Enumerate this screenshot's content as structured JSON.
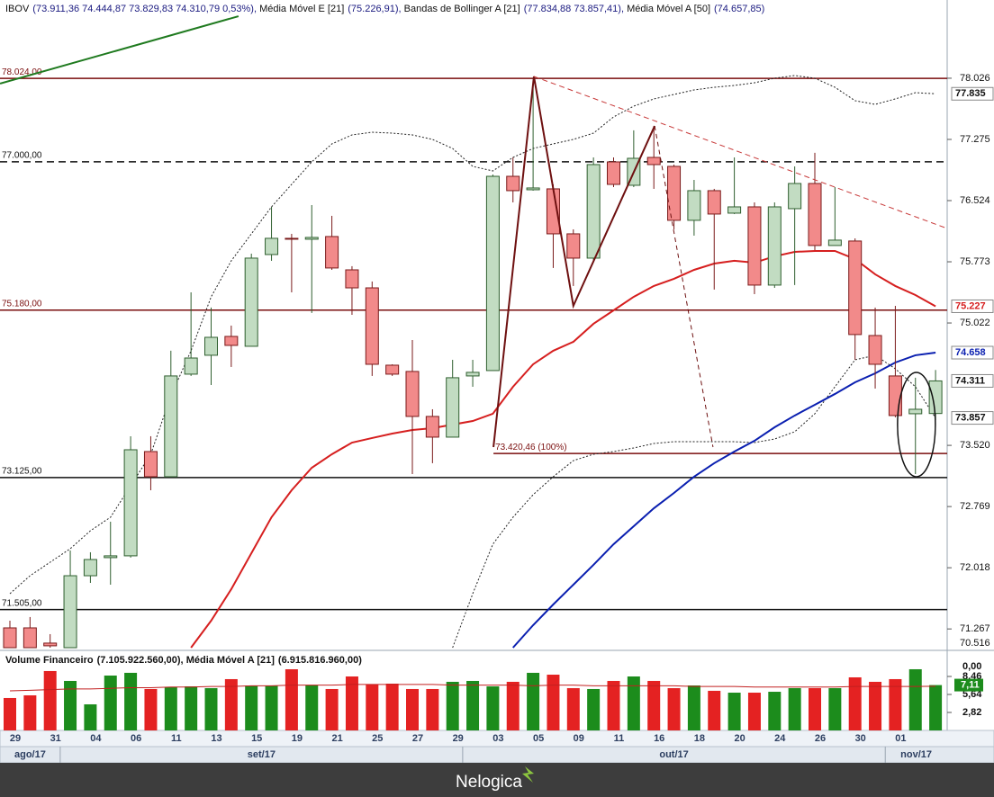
{
  "chart_data": {
    "type": "candlestick",
    "header": [
      {
        "name": "IBOV",
        "values": "(73.911,36  74.444,87  73.829,83  74.310,79  0,53%),"
      },
      {
        "name": "Média Móvel E [21]",
        "values": "(75.226,91),"
      },
      {
        "name": "Bandas de Bollinger A [21]",
        "values": "(77.834,88  73.857,41),"
      },
      {
        "name": "Média Móvel A [50]",
        "values": "(74.657,85)"
      }
    ],
    "categories": [
      "29",
      null,
      "31",
      null,
      "04",
      null,
      "06",
      null,
      "11",
      null,
      "13",
      null,
      "15",
      null,
      "19",
      null,
      "21",
      null,
      "25",
      null,
      "27",
      null,
      "29",
      null,
      "03",
      null,
      "05",
      null,
      "09",
      null,
      "11",
      null,
      "16",
      null,
      "18",
      null,
      "20",
      null,
      "24",
      null,
      "26",
      null,
      "30",
      null,
      "01",
      null,
      null
    ],
    "months": [
      {
        "name": "ago/17",
        "start": 0
      },
      {
        "name": "set/17",
        "start": 3
      },
      {
        "name": "out/17",
        "start": 23
      },
      {
        "name": "nov/17",
        "start": 44
      }
    ],
    "ylim": [
      71037,
      78986
    ],
    "yticks": [
      {
        "value": 78026,
        "label": "78.026"
      },
      {
        "value": 77275,
        "label": "77.275"
      },
      {
        "value": 76524,
        "label": "76.524"
      },
      {
        "value": 75773,
        "label": "75.773"
      },
      {
        "value": 75022,
        "label": "75.022"
      },
      {
        "value": 73520,
        "label": "73.520"
      },
      {
        "value": 72769,
        "label": "72.769"
      },
      {
        "value": 72018,
        "label": "72.018"
      },
      {
        "value": 71267,
        "label": "71.267"
      }
    ],
    "axis_floor_label": "70.516",
    "up_color": "#c2dcc2",
    "up_edge": "#2f5f2f",
    "down_color": "#f28a8a",
    "down_edge": "#7a1a1a",
    "open": [
      71280,
      71280,
      71093,
      71037,
      71920,
      72142,
      72164,
      73444,
      73135,
      74394,
      74626,
      74857,
      74736,
      75862,
      76061,
      76050,
      76083,
      75674,
      75453,
      74504,
      74427,
      73875,
      73621,
      74372,
      74438,
      76822,
      76657,
      76668,
      76116,
      75818,
      76999,
      76712,
      77054,
      76944,
      76282,
      76646,
      76370,
      76447,
      75487,
      76425,
      76734,
      75973,
      76028,
      74868,
      74372,
      73908,
      73911
    ],
    "high": [
      71368,
      71413,
      71203,
      72230,
      72208,
      72583,
      73632,
      73632,
      74681,
      75398,
      75211,
      74990,
      75873,
      76447,
      76116,
      76469,
      76337,
      75719,
      75531,
      74515,
      74813,
      73963,
      74570,
      74570,
      76844,
      77054,
      77993,
      76723,
      76171,
      77054,
      77054,
      77386,
      77441,
      76966,
      76778,
      76668,
      77054,
      76502,
      76502,
      76944,
      77110,
      76690,
      76061,
      75211,
      75232,
      74350,
      74445
    ],
    "low": [
      71037,
      71037,
      71037,
      71037,
      71832,
      71810,
      72142,
      72969,
      73135,
      74372,
      74261,
      74482,
      74736,
      75785,
      75398,
      75145,
      75674,
      75122,
      74372,
      74372,
      73168,
      73301,
      73621,
      74239,
      74438,
      76502,
      76646,
      75697,
      75476,
      75785,
      76690,
      76690,
      76668,
      76171,
      76094,
      75432,
      76359,
      75376,
      75453,
      75487,
      75917,
      75973,
      74570,
      74217,
      73864,
      73168,
      73830
    ],
    "close": [
      71037,
      71037,
      71060,
      71920,
      72119,
      72164,
      73466,
      73135,
      74372,
      74592,
      74846,
      74747,
      75818,
      76061,
      76050,
      76072,
      75697,
      75453,
      74515,
      74394,
      73875,
      73621,
      74350,
      74416,
      76822,
      76646,
      76679,
      76116,
      75818,
      76966,
      76723,
      77043,
      76966,
      76282,
      76646,
      76359,
      76447,
      75487,
      76447,
      76734,
      75973,
      76039,
      74880,
      74515,
      73886,
      73963,
      74311
    ],
    "lines": [
      {
        "color": "#d61f1f",
        "width": 2,
        "dash": "",
        "values": [
          null,
          null,
          null,
          null,
          null,
          null,
          null,
          null,
          null,
          71037,
          71368,
          71755,
          72196,
          72638,
          72969,
          73245,
          73411,
          73554,
          73610,
          73665,
          73709,
          73731,
          73775,
          73819,
          73908,
          74239,
          74515,
          74681,
          74791,
          75012,
          75177,
          75343,
          75476,
          75564,
          75674,
          75751,
          75785,
          75762,
          75840,
          75895,
          75906,
          75906,
          75807,
          75619,
          75476,
          75365,
          75227
        ]
      },
      {
        "color": "#0a1fb0",
        "width": 2,
        "dash": "",
        "values": [
          null,
          null,
          null,
          null,
          null,
          null,
          null,
          null,
          null,
          null,
          null,
          null,
          null,
          null,
          null,
          null,
          null,
          null,
          null,
          null,
          null,
          null,
          null,
          null,
          null,
          71037,
          71313,
          71567,
          71810,
          72053,
          72307,
          72528,
          72748,
          72936,
          73135,
          73301,
          73444,
          73576,
          73742,
          73886,
          74018,
          74151,
          74294,
          74404,
          74537,
          74626,
          74658
        ]
      },
      {
        "color": "#222222",
        "width": 1,
        "dash": "2 2",
        "values": [
          71700,
          71920,
          72086,
          72252,
          72472,
          72638,
          73024,
          73411,
          74128,
          74681,
          75343,
          75785,
          76116,
          76447,
          76723,
          76999,
          77220,
          77330,
          77363,
          77352,
          77330,
          77275,
          77164,
          76944,
          76888,
          77054,
          77164,
          77220,
          77275,
          77352,
          77551,
          77683,
          77772,
          77827,
          77882,
          77915,
          77937,
          77970,
          78026,
          78059,
          78026,
          77915,
          77750,
          77705,
          77772,
          77849,
          77835
        ]
      },
      {
        "color": "#222222",
        "width": 1,
        "dash": "2 2",
        "values": [
          null,
          null,
          null,
          null,
          null,
          null,
          null,
          null,
          null,
          null,
          null,
          null,
          null,
          null,
          null,
          null,
          null,
          null,
          null,
          null,
          null,
          null,
          71037,
          71700,
          72307,
          72638,
          72914,
          73135,
          73333,
          73411,
          73444,
          73488,
          73543,
          73565,
          73565,
          73565,
          73565,
          73554,
          73598,
          73687,
          73908,
          74239,
          74570,
          74626,
          74460,
          74239,
          73857
        ]
      }
    ],
    "levels": [
      {
        "value": 78024,
        "label": "78.024,00",
        "color": "#7a0e0e",
        "dashed": false
      },
      {
        "value": 77000,
        "label": "77.000,00",
        "color": "#111111",
        "dashed": true
      },
      {
        "value": 75180,
        "label": "75.180,00",
        "color": "#7a0e0e",
        "dashed": false
      },
      {
        "value": 73125,
        "label": "73.125,00",
        "color": "#111111",
        "dashed": false
      },
      {
        "value": 71505,
        "label": "71.505,00",
        "color": "#111111",
        "dashed": false
      }
    ],
    "target": {
      "value": 73420.46,
      "label": "73.420,46 (100%)",
      "start": 24.03,
      "color": "#7a0e0e"
    },
    "drawings": [
      {
        "color": "#6e1010",
        "width": 2,
        "dash": "",
        "x": [
          24.03,
          26.04,
          28.0,
          32.04
        ],
        "values": [
          73499,
          78048,
          75232,
          77440
        ]
      },
      {
        "color": "#6e1010",
        "width": 1,
        "dash": "5 4",
        "x": [
          32.04,
          34.94
        ],
        "values": [
          77440,
          73499
        ]
      },
      {
        "color": "#c83a3a",
        "width": 1,
        "dash": "6 4",
        "x": [
          26.04,
          46.58
        ],
        "values": [
          78048,
          76182
        ]
      },
      {
        "color": "#1f7a1f",
        "width": 2,
        "dash": "",
        "x": [
          -0.49,
          11.36
        ],
        "values": [
          77960,
          78787
        ]
      }
    ],
    "ellipse": {
      "x": 45.05,
      "values": [
        74416,
        73135
      ]
    },
    "last_labels": [
      {
        "value": 77835,
        "label": "77.835",
        "color": "#111111"
      },
      {
        "value": 75227,
        "label": "75.227",
        "color": "#d61f1f"
      },
      {
        "value": 74658,
        "label": "74.658",
        "color": "#0a1fb0"
      },
      {
        "value": 74311,
        "label": "74.311",
        "color": "#111111"
      },
      {
        "value": 73857,
        "label": "73.857",
        "color": "#111111"
      }
    ],
    "volume": {
      "header": [
        {
          "name": "Volume Financeiro",
          "values": "(7.105.922.560,00),"
        },
        {
          "name": "Média Móvel A [21]",
          "values": "(6.915.816.960,00)"
        }
      ],
      "up_color": "#1c8c1c",
      "down_color": "#e42222",
      "ma_color": "#c22020",
      "values": [
        5.08,
        5.5,
        9.31,
        7.76,
        4.09,
        8.6,
        9.03,
        6.49,
        6.77,
        6.91,
        6.63,
        8.04,
        7.05,
        7.05,
        9.59,
        7.05,
        6.49,
        8.46,
        7.19,
        7.33,
        6.49,
        6.49,
        7.62,
        7.76,
        6.91,
        7.62,
        9.03,
        8.74,
        6.63,
        6.49,
        7.76,
        8.46,
        7.76,
        6.63,
        7.05,
        6.21,
        5.92,
        5.92,
        6.06,
        6.63,
        6.63,
        6.63,
        8.32,
        7.62,
        8.04,
        9.59,
        7.11
      ],
      "ma": [
        6.2,
        6.3,
        6.4,
        6.5,
        6.5,
        6.6,
        6.7,
        6.7,
        6.8,
        6.8,
        6.9,
        6.9,
        7.0,
        7.0,
        7.1,
        7.1,
        7.1,
        7.2,
        7.2,
        7.2,
        7.2,
        7.2,
        7.1,
        7.1,
        7.1,
        7.1,
        7.0,
        7.1,
        7.1,
        7.0,
        7.0,
        7.0,
        7.0,
        7.0,
        6.9,
        6.9,
        6.9,
        6.8,
        6.8,
        6.8,
        6.8,
        6.8,
        6.9,
        6.9,
        6.9,
        6.9,
        6.92
      ],
      "ylim": [
        0,
        11.28
      ],
      "yticks": [
        {
          "value": 8.46,
          "label": "8,46"
        },
        {
          "value": 5.64,
          "label": "5,64"
        },
        {
          "value": 2.82,
          "label": "2,82"
        }
      ],
      "top_label": "0,00",
      "last_label": {
        "value": 7.11,
        "label": "7,11"
      }
    },
    "footer": "Nelogica"
  }
}
